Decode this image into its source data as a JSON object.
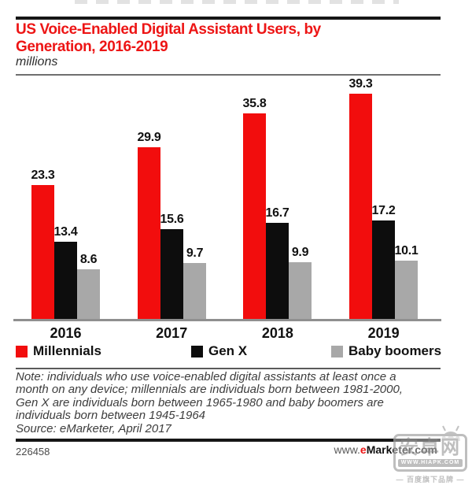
{
  "title": {
    "line1": "US Voice-Enabled Digital Assistant Users, by",
    "line2": "Generation, 2016-2019"
  },
  "subtitle": "millions",
  "chart_data": {
    "type": "bar",
    "title": "US Voice-Enabled Digital Assistant Users, by Generation, 2016-2019",
    "subtitle": "millions",
    "categories": [
      "2016",
      "2017",
      "2018",
      "2019"
    ],
    "series": [
      {
        "name": "Millennials",
        "color": "#f20d0d",
        "values": [
          23.3,
          29.9,
          35.8,
          39.3
        ]
      },
      {
        "name": "Gen X",
        "color": "#0d0d0d",
        "values": [
          13.4,
          15.6,
          16.7,
          17.2
        ]
      },
      {
        "name": "Baby boomers",
        "color": "#a8a8a8",
        "values": [
          8.6,
          9.7,
          9.9,
          10.1
        ]
      }
    ],
    "xlabel": "",
    "ylabel": "millions",
    "ylim": [
      0,
      40.5
    ],
    "grid": false,
    "legend_position": "bottom",
    "value_labels": true
  },
  "note_lines": [
    "Note: individuals who use voice-enabled digital assistants at least once a",
    "month on any device; millennials are individuals born between 1981-2000,",
    "Gen X are individuals born between 1965-1980 and baby boomers are",
    "individuals born between 1945-1964"
  ],
  "source": "Source: eMarketer, April 2017",
  "footer": {
    "chart_id": "226458",
    "url_prefix": "www.",
    "url_brand_e": "e",
    "url_brand_rest": "Marketer.com"
  },
  "watermark": {
    "site_name": "安卓网",
    "site_url": "WWW.HIAPK.COM",
    "caption": "— 百度旗下品牌 —"
  },
  "colors": {
    "accent_red": "#ed1515",
    "bar_black": "#0d0d0d",
    "bar_gray": "#a8a8a8",
    "axis_gray": "#8f8f8f"
  }
}
